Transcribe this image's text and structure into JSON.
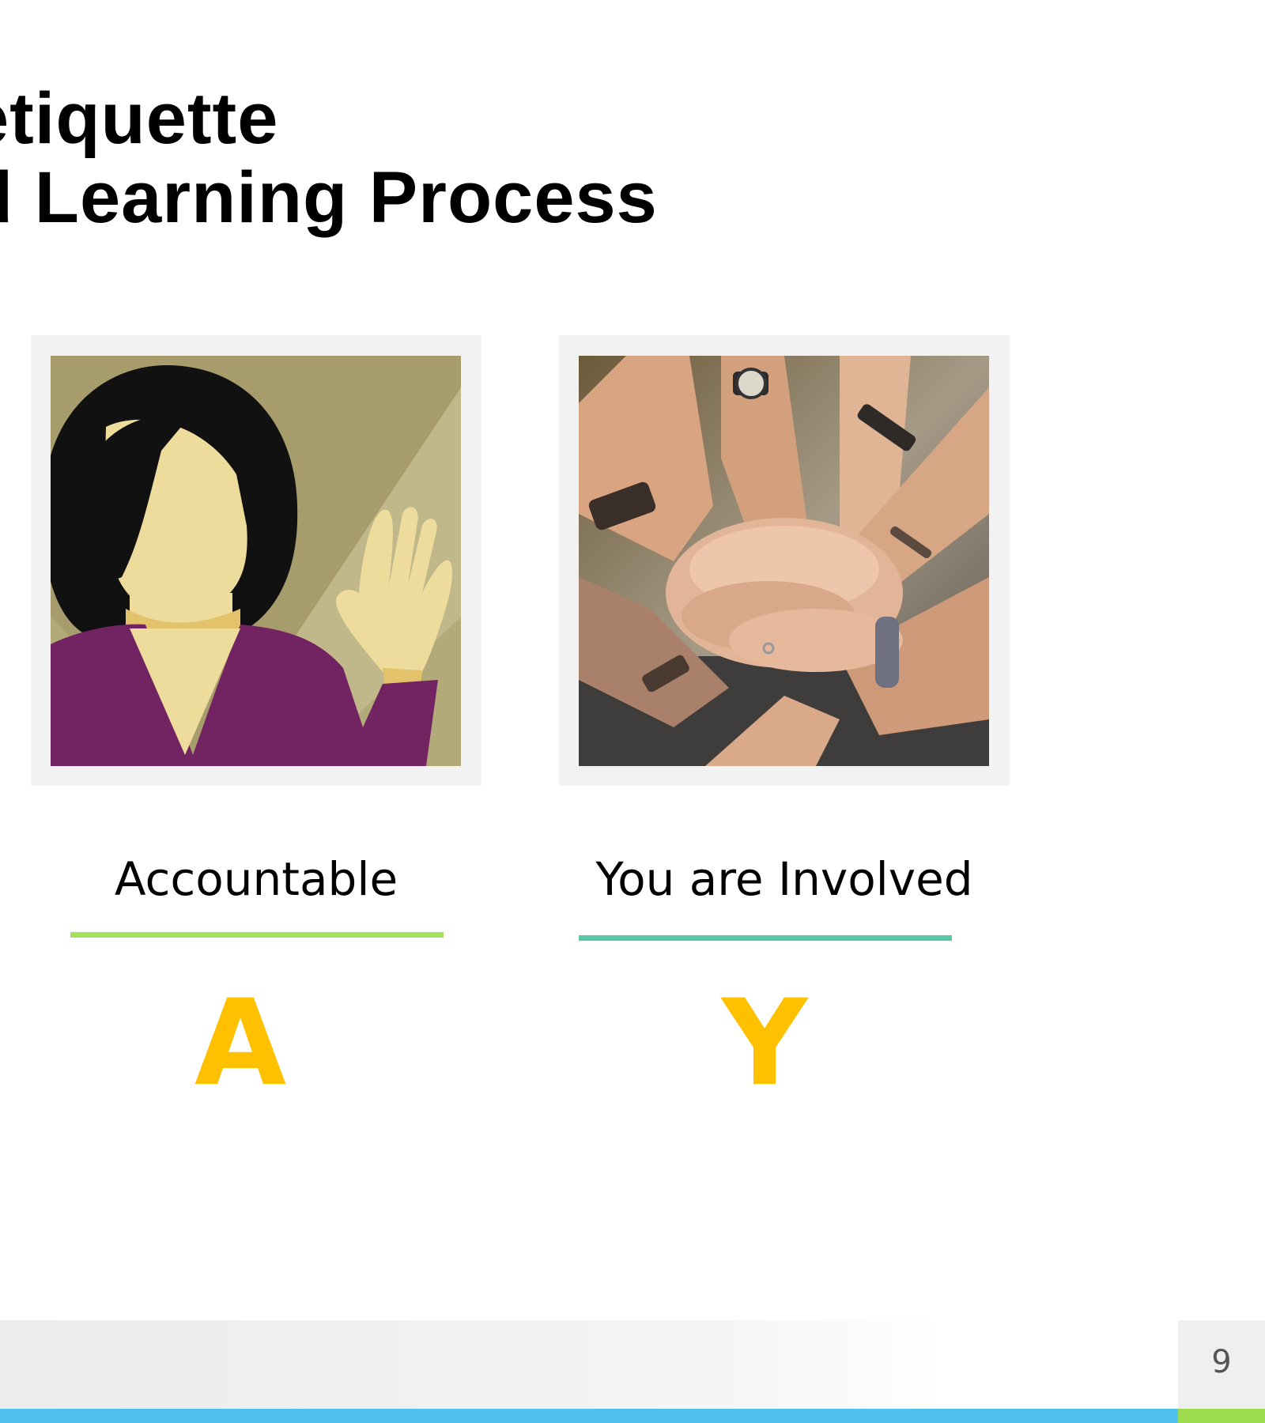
{
  "slide": {
    "title_line1": "etiquette",
    "title_line2": "d Learning Process",
    "page_number": "9"
  },
  "cards": [
    {
      "label": "Accountable",
      "letter": "A",
      "image": "woman-raising-hand-illustration",
      "underline_color": "#a4e05a"
    },
    {
      "label": "You are Involved",
      "letter": "Y",
      "image": "stacked-hands-photo",
      "underline_color": "#58c9a6"
    }
  ],
  "colors": {
    "letter": "#ffc000",
    "footer_blue": "#4fc1ef",
    "footer_green": "#9bdb4d"
  }
}
